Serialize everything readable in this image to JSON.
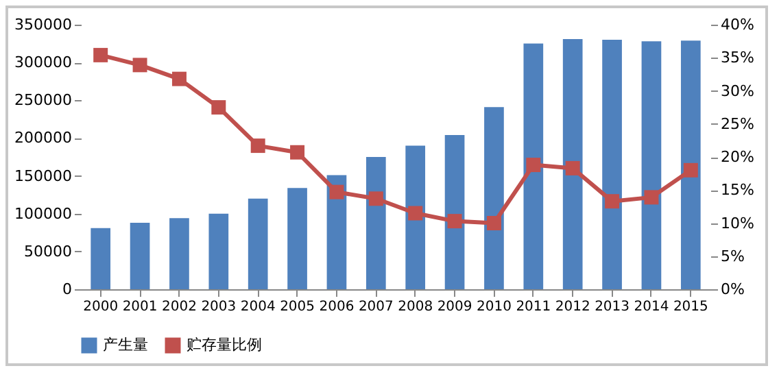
{
  "chart_data": {
    "type": "bar",
    "categories": [
      "2000",
      "2001",
      "2002",
      "2003",
      "2004",
      "2005",
      "2006",
      "2007",
      "2008",
      "2009",
      "2010",
      "2011",
      "2012",
      "2013",
      "2014",
      "2015"
    ],
    "series": [
      {
        "name": "产生量",
        "color": "#4f81bd",
        "values": [
          81000,
          88000,
          94000,
          100000,
          120000,
          134000,
          151000,
          175000,
          190000,
          204000,
          241000,
          325000,
          331000,
          330000,
          328000,
          329000
        ]
      },
      {
        "name": "贮存量比例",
        "type": "line",
        "axis": "y2",
        "color": "#c0504d",
        "marker": "square",
        "values": [
          35.4,
          33.9,
          31.8,
          27.5,
          21.7,
          20.7,
          14.7,
          13.7,
          11.5,
          10.3,
          10.0,
          18.8,
          18.3,
          13.3,
          13.9,
          18.0
        ]
      }
    ],
    "ylim": [
      0,
      350000
    ],
    "yticks": [
      0,
      50000,
      100000,
      150000,
      200000,
      250000,
      300000,
      350000
    ],
    "y2lim": [
      0,
      40
    ],
    "y2ticks": [
      {
        "value": 0,
        "label": "0%"
      },
      {
        "value": 5,
        "label": "5%"
      },
      {
        "value": 10,
        "label": "10%"
      },
      {
        "value": 15,
        "label": "15%"
      },
      {
        "value": 20,
        "label": "20%"
      },
      {
        "value": 25,
        "label": "25%"
      },
      {
        "value": 30,
        "label": "30%"
      },
      {
        "value": 35,
        "label": "35%"
      },
      {
        "value": 40,
        "label": "40%"
      }
    ],
    "grid": false,
    "legend": "bottom"
  }
}
